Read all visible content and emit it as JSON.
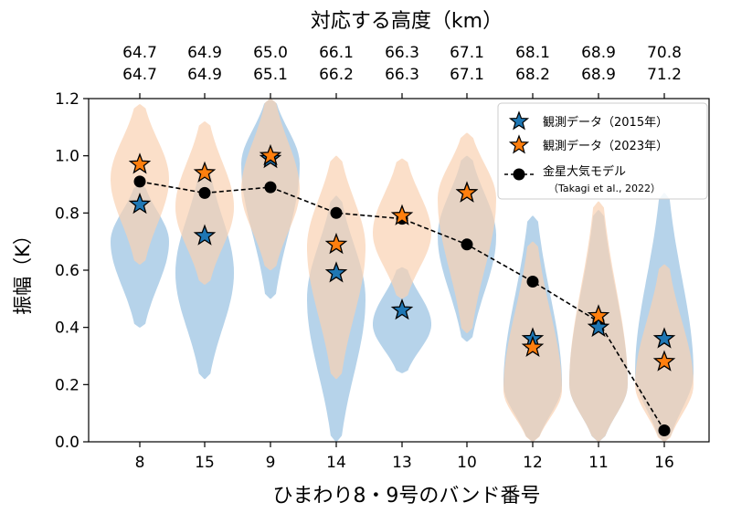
{
  "chart_data": {
    "type": "violin",
    "top_title": "対応する高度（km）",
    "xlabel": "ひまわり8・9号のバンド番号",
    "ylabel": "振幅（K）",
    "ylim": [
      0,
      1.2
    ],
    "yticks": [
      "0.0",
      "0.2",
      "0.4",
      "0.6",
      "0.8",
      "1.0",
      "1.2"
    ],
    "categories": [
      "8",
      "15",
      "9",
      "14",
      "13",
      "10",
      "12",
      "11",
      "16"
    ],
    "top_labels_row1": [
      "64.7",
      "64.9",
      "65.0",
      "66.1",
      "66.3",
      "67.1",
      "68.1",
      "68.9",
      "70.8"
    ],
    "top_labels_row2": [
      "64.7",
      "64.9",
      "65.1",
      "66.2",
      "66.3",
      "67.1",
      "68.2",
      "68.9",
      "71.2"
    ],
    "series": [
      {
        "name": "観測データ（2015年）",
        "color": "#1f77b4",
        "violin_color": "#a9cbe6",
        "values": [
          0.83,
          0.72,
          0.99,
          0.59,
          0.46,
          0.87,
          0.36,
          0.4,
          0.36
        ],
        "violins": [
          {
            "min": 0.4,
            "max": 0.9,
            "peak": 0.7
          },
          {
            "min": 0.22,
            "max": 0.96,
            "peak": 0.59
          },
          {
            "min": 0.5,
            "max": 1.2,
            "peak": 0.97
          },
          {
            "min": 0.0,
            "max": 0.86,
            "peak": 0.5
          },
          {
            "min": 0.24,
            "max": 0.61,
            "peak": 0.41
          },
          {
            "min": 0.35,
            "max": 1.0,
            "peak": 0.72
          },
          {
            "min": 0.0,
            "max": 0.79,
            "peak": 0.2
          },
          {
            "min": 0.0,
            "max": 0.81,
            "peak": 0.2
          },
          {
            "min": 0.0,
            "max": 0.87,
            "peak": 0.24
          }
        ]
      },
      {
        "name": "観測データ（2023年）",
        "color": "#ff7f0e",
        "violin_color": "#f9d2b2",
        "values": [
          0.97,
          0.94,
          1.0,
          0.69,
          0.79,
          0.87,
          0.33,
          0.44,
          0.28
        ],
        "violins": [
          {
            "min": 0.62,
            "max": 1.18,
            "peak": 0.92
          },
          {
            "min": 0.55,
            "max": 1.12,
            "peak": 0.82
          },
          {
            "min": 0.6,
            "max": 1.2,
            "peak": 0.88
          },
          {
            "min": 0.22,
            "max": 1.0,
            "peak": 0.68
          },
          {
            "min": 0.5,
            "max": 0.99,
            "peak": 0.73
          },
          {
            "min": 0.38,
            "max": 1.08,
            "peak": 0.85
          },
          {
            "min": 0.0,
            "max": 0.7,
            "peak": 0.18
          },
          {
            "min": 0.0,
            "max": 0.84,
            "peak": 0.2
          },
          {
            "min": 0.0,
            "max": 0.62,
            "peak": 0.2
          }
        ]
      },
      {
        "name": "金星大気モデル",
        "name_sub": "（Takagi et al., 2022）",
        "color": "#000000",
        "values": [
          0.91,
          0.87,
          0.89,
          0.8,
          0.78,
          0.69,
          0.56,
          0.42,
          0.04
        ]
      }
    ],
    "legend_position": "upper right",
    "grid": false
  }
}
